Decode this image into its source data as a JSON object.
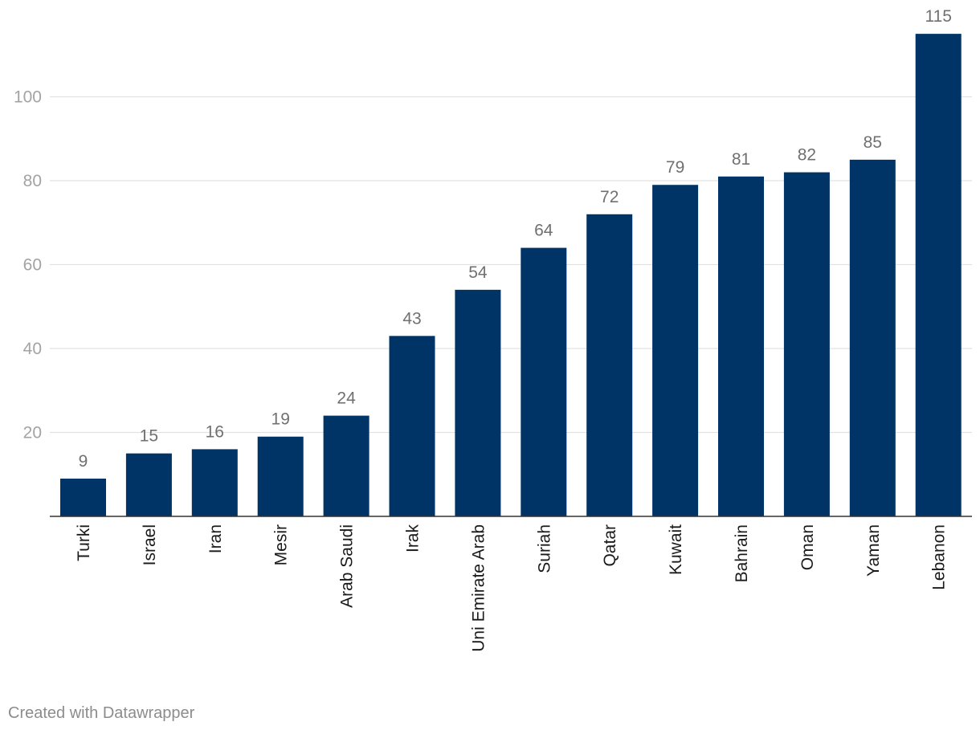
{
  "chart_data": {
    "type": "bar",
    "categories": [
      "Turki",
      "Israel",
      "Iran",
      "Mesir",
      "Arab Saudi",
      "Irak",
      "Uni Emirate Arab",
      "Suriah",
      "Qatar",
      "Kuwait",
      "Bahrain",
      "Oman",
      "Yaman",
      "Lebanon"
    ],
    "values": [
      9,
      15,
      16,
      19,
      24,
      43,
      54,
      64,
      72,
      79,
      81,
      82,
      85,
      115
    ],
    "ylim": [
      0,
      115
    ],
    "yticks": [
      20,
      40,
      60,
      80,
      100
    ],
    "grid": true,
    "data_labels": true,
    "colors": {
      "bar": "#003366",
      "grid": "#e2e2e2",
      "axis": "#333333"
    }
  },
  "footer": {
    "credit": "Created with Datawrapper"
  }
}
